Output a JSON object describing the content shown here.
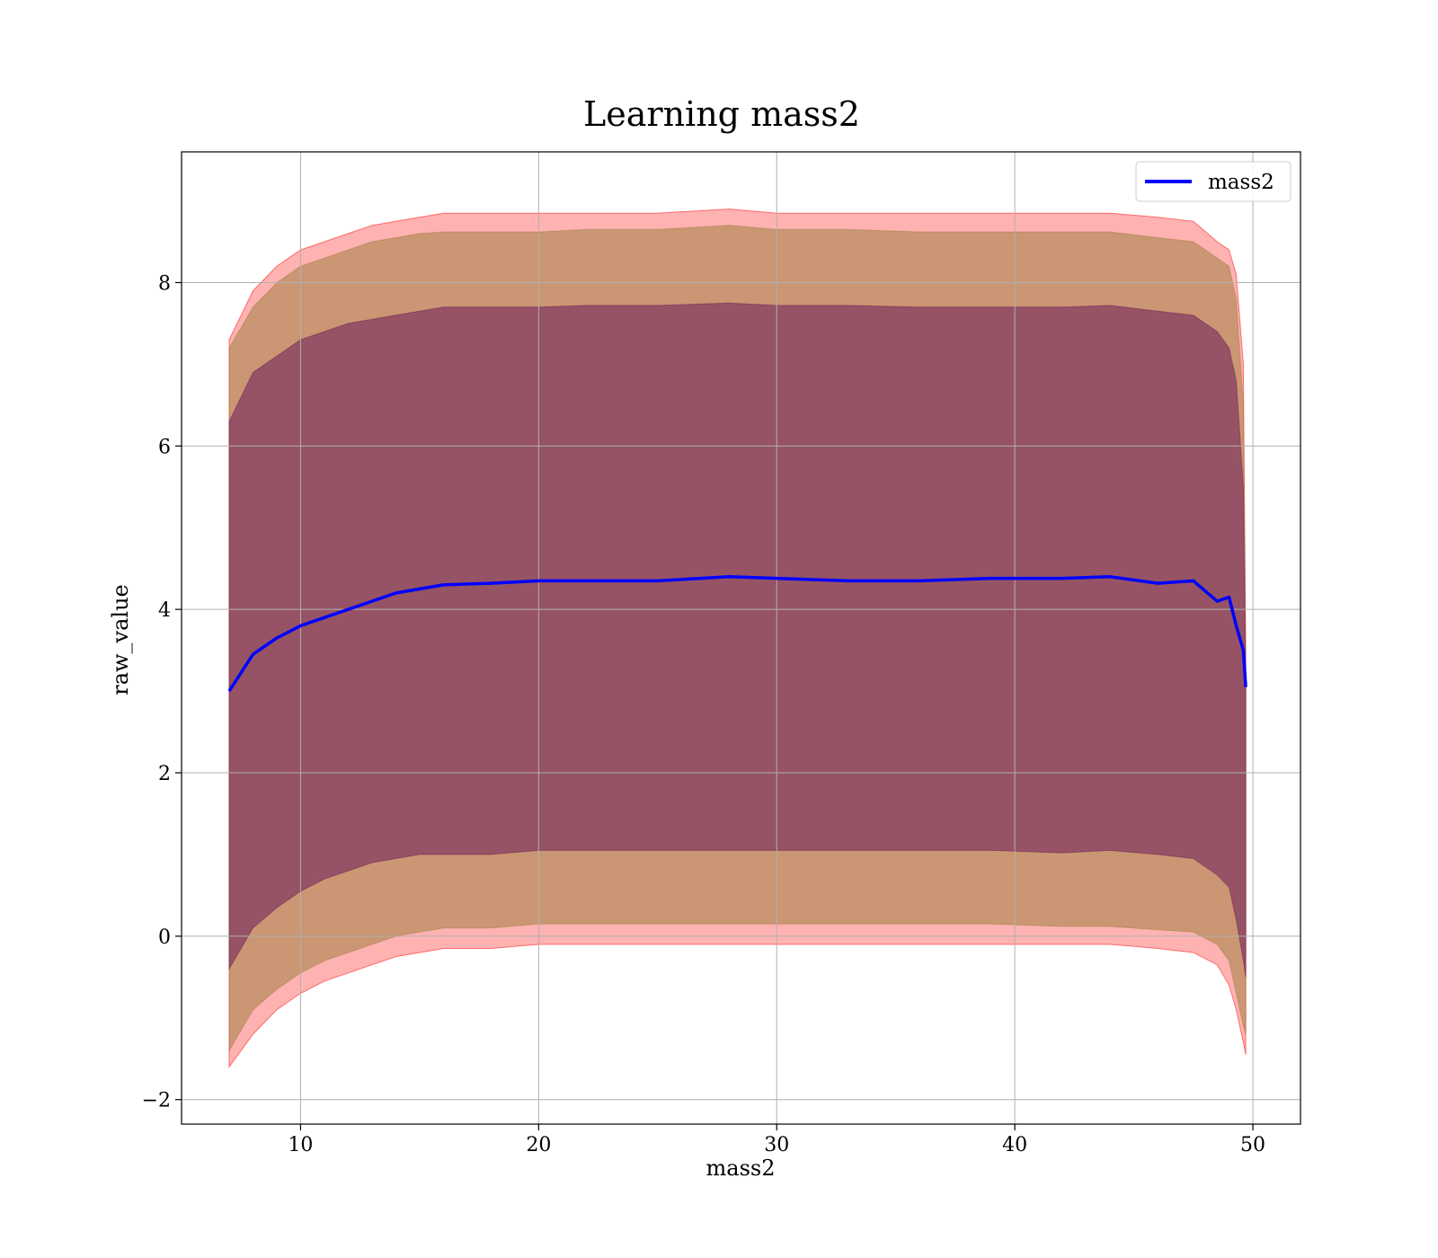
{
  "chart_data": {
    "type": "line",
    "title": "Learning mass2",
    "xlabel": "mass2",
    "ylabel": "raw_value",
    "xlim": [
      5,
      52
    ],
    "ylim": [
      -2.3,
      9.6
    ],
    "xticks": [
      10,
      20,
      30,
      40,
      50
    ],
    "yticks": [
      -2,
      0,
      2,
      4,
      6,
      8
    ],
    "xtick_labels": [
      "10",
      "20",
      "30",
      "40",
      "50"
    ],
    "ytick_labels": [
      "−2",
      "0",
      "2",
      "4",
      "6",
      "8"
    ],
    "grid": true,
    "legend": {
      "position": "top-right",
      "entries": [
        "mass2"
      ]
    },
    "colors": {
      "line": "#0000ff",
      "band_outer": "#ff0000",
      "band_middle": "#a08040",
      "band_inner": "#6b1e5a"
    },
    "x": [
      7.0,
      8.0,
      9.0,
      10.0,
      11.0,
      12.0,
      13.0,
      14.0,
      15.0,
      16.0,
      18.0,
      20.0,
      22.0,
      25.0,
      28.0,
      30.0,
      33.0,
      36.0,
      39.0,
      42.0,
      44.0,
      46.0,
      47.5,
      48.5,
      49.0,
      49.3,
      49.6,
      49.7
    ],
    "series": [
      {
        "name": "mass2",
        "values": [
          3.0,
          3.45,
          3.65,
          3.8,
          3.9,
          4.0,
          4.1,
          4.2,
          4.25,
          4.3,
          4.32,
          4.35,
          4.35,
          4.35,
          4.4,
          4.38,
          4.35,
          4.35,
          4.38,
          4.38,
          4.4,
          4.32,
          4.35,
          4.1,
          4.15,
          3.8,
          3.5,
          3.05
        ]
      }
    ],
    "bands": [
      {
        "name": "outer",
        "upper": [
          7.3,
          7.9,
          8.2,
          8.4,
          8.5,
          8.6,
          8.7,
          8.75,
          8.8,
          8.85,
          8.85,
          8.85,
          8.85,
          8.85,
          8.9,
          8.85,
          8.85,
          8.85,
          8.85,
          8.85,
          8.85,
          8.8,
          8.75,
          8.5,
          8.4,
          8.1,
          7.0,
          3.5
        ],
        "lower": [
          -1.6,
          -1.2,
          -0.9,
          -0.7,
          -0.55,
          -0.45,
          -0.35,
          -0.25,
          -0.2,
          -0.15,
          -0.15,
          -0.1,
          -0.1,
          -0.1,
          -0.1,
          -0.1,
          -0.1,
          -0.1,
          -0.1,
          -0.1,
          -0.1,
          -0.15,
          -0.2,
          -0.35,
          -0.6,
          -0.9,
          -1.3,
          -1.45
        ]
      },
      {
        "name": "middle",
        "upper": [
          7.2,
          7.7,
          8.0,
          8.2,
          8.3,
          8.4,
          8.5,
          8.55,
          8.6,
          8.62,
          8.62,
          8.62,
          8.65,
          8.65,
          8.7,
          8.65,
          8.65,
          8.62,
          8.62,
          8.62,
          8.62,
          8.55,
          8.5,
          8.3,
          8.2,
          7.8,
          6.5,
          3.3
        ],
        "lower": [
          -1.4,
          -0.9,
          -0.65,
          -0.45,
          -0.3,
          -0.2,
          -0.1,
          0.0,
          0.05,
          0.1,
          0.1,
          0.15,
          0.15,
          0.15,
          0.15,
          0.15,
          0.15,
          0.15,
          0.15,
          0.12,
          0.12,
          0.08,
          0.05,
          -0.1,
          -0.3,
          -0.7,
          -1.1,
          -1.2
        ]
      },
      {
        "name": "inner",
        "upper": [
          6.3,
          6.9,
          7.1,
          7.3,
          7.4,
          7.5,
          7.55,
          7.6,
          7.65,
          7.7,
          7.7,
          7.7,
          7.72,
          7.72,
          7.75,
          7.72,
          7.72,
          7.7,
          7.7,
          7.7,
          7.72,
          7.65,
          7.6,
          7.4,
          7.2,
          6.8,
          5.5,
          3.1
        ],
        "lower": [
          -0.4,
          0.1,
          0.35,
          0.55,
          0.7,
          0.8,
          0.9,
          0.95,
          1.0,
          1.0,
          1.0,
          1.05,
          1.05,
          1.05,
          1.05,
          1.05,
          1.05,
          1.05,
          1.05,
          1.02,
          1.05,
          1.0,
          0.95,
          0.75,
          0.6,
          0.2,
          -0.3,
          -0.5
        ]
      }
    ]
  }
}
